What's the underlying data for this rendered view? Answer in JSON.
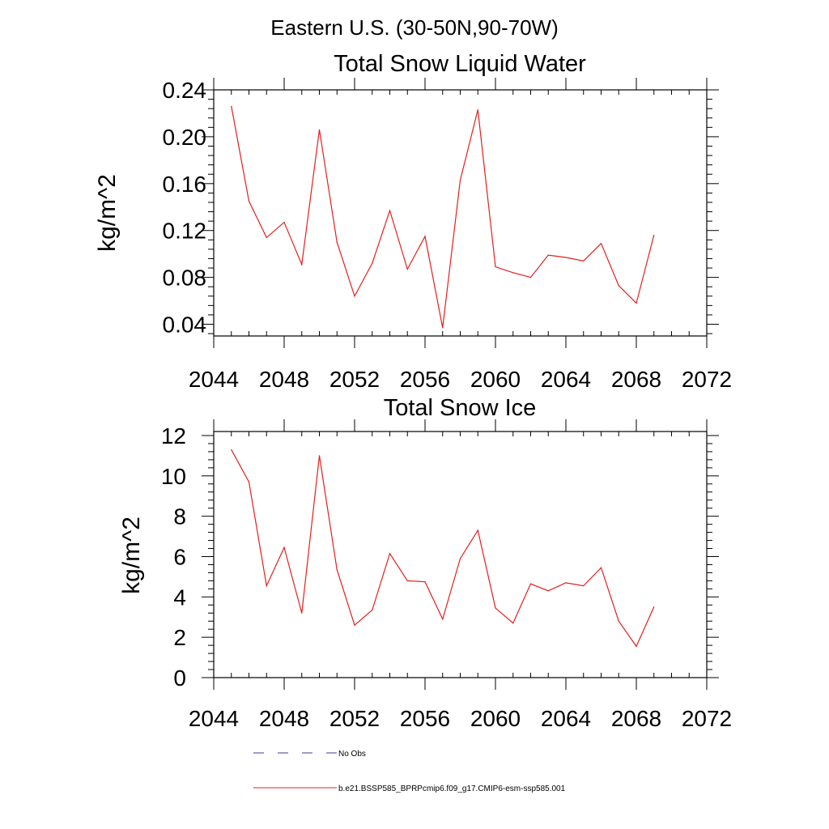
{
  "page_title": "Eastern U.S. (30-50N,90-70W)",
  "legend": {
    "items": [
      {
        "label": "No Obs",
        "color": "#3b3b8f",
        "dash": "dashed"
      },
      {
        "label": "b.e21.BSSP585_BPRPcmip6.f09_g17.CMIP6-esm-ssp585.001",
        "color": "#e02020",
        "dash": "solid"
      }
    ]
  },
  "chart_data": [
    {
      "type": "line",
      "title": "Total Snow Liquid Water",
      "xlabel": "",
      "ylabel": "kg/m^2",
      "xlim": [
        2044,
        2072
      ],
      "ylim": [
        0.03,
        0.24
      ],
      "x_ticks": [
        2044,
        2048,
        2052,
        2056,
        2060,
        2064,
        2068,
        2072
      ],
      "y_ticks": [
        "0.04",
        "0.08",
        "0.12",
        "0.16",
        "0.20",
        "0.24"
      ],
      "grid": false,
      "series": [
        {
          "name": "b.e21.BSSP585_BPRPcmip6.f09_g17.CMIP6-esm-ssp585.001",
          "color": "#e02020",
          "x": [
            2045,
            2046,
            2047,
            2048,
            2049,
            2050,
            2051,
            2052,
            2053,
            2054,
            2055,
            2056,
            2057,
            2058,
            2059,
            2060,
            2061,
            2062,
            2063,
            2064,
            2065,
            2066,
            2067,
            2068,
            2069
          ],
          "values": [
            0.226,
            0.145,
            0.114,
            0.127,
            0.091,
            0.206,
            0.11,
            0.064,
            0.092,
            0.137,
            0.087,
            0.115,
            0.037,
            0.163,
            0.223,
            0.089,
            0.084,
            0.08,
            0.099,
            0.097,
            0.094,
            0.109,
            0.073,
            0.058,
            0.116
          ]
        }
      ]
    },
    {
      "type": "line",
      "title": "Total Snow Ice",
      "xlabel": "",
      "ylabel": "kg/m^2",
      "xlim": [
        2044,
        2072
      ],
      "ylim": [
        0,
        12.2
      ],
      "x_ticks": [
        2044,
        2048,
        2052,
        2056,
        2060,
        2064,
        2068,
        2072
      ],
      "y_ticks": [
        "0",
        "2",
        "4",
        "6",
        "8",
        "10",
        "12"
      ],
      "grid": false,
      "series": [
        {
          "name": "b.e21.BSSP585_BPRPcmip6.f09_g17.CMIP6-esm-ssp585.001",
          "color": "#e02020",
          "x": [
            2045,
            2046,
            2047,
            2048,
            2049,
            2050,
            2051,
            2052,
            2053,
            2054,
            2055,
            2056,
            2057,
            2058,
            2059,
            2060,
            2061,
            2062,
            2063,
            2064,
            2065,
            2066,
            2067,
            2068,
            2069
          ],
          "values": [
            11.3,
            9.7,
            4.55,
            6.45,
            3.2,
            11.0,
            5.35,
            2.6,
            3.35,
            6.15,
            4.8,
            4.75,
            2.9,
            5.9,
            7.3,
            3.45,
            2.7,
            4.65,
            4.3,
            4.7,
            4.55,
            5.45,
            2.8,
            1.55,
            3.5
          ]
        }
      ]
    }
  ]
}
